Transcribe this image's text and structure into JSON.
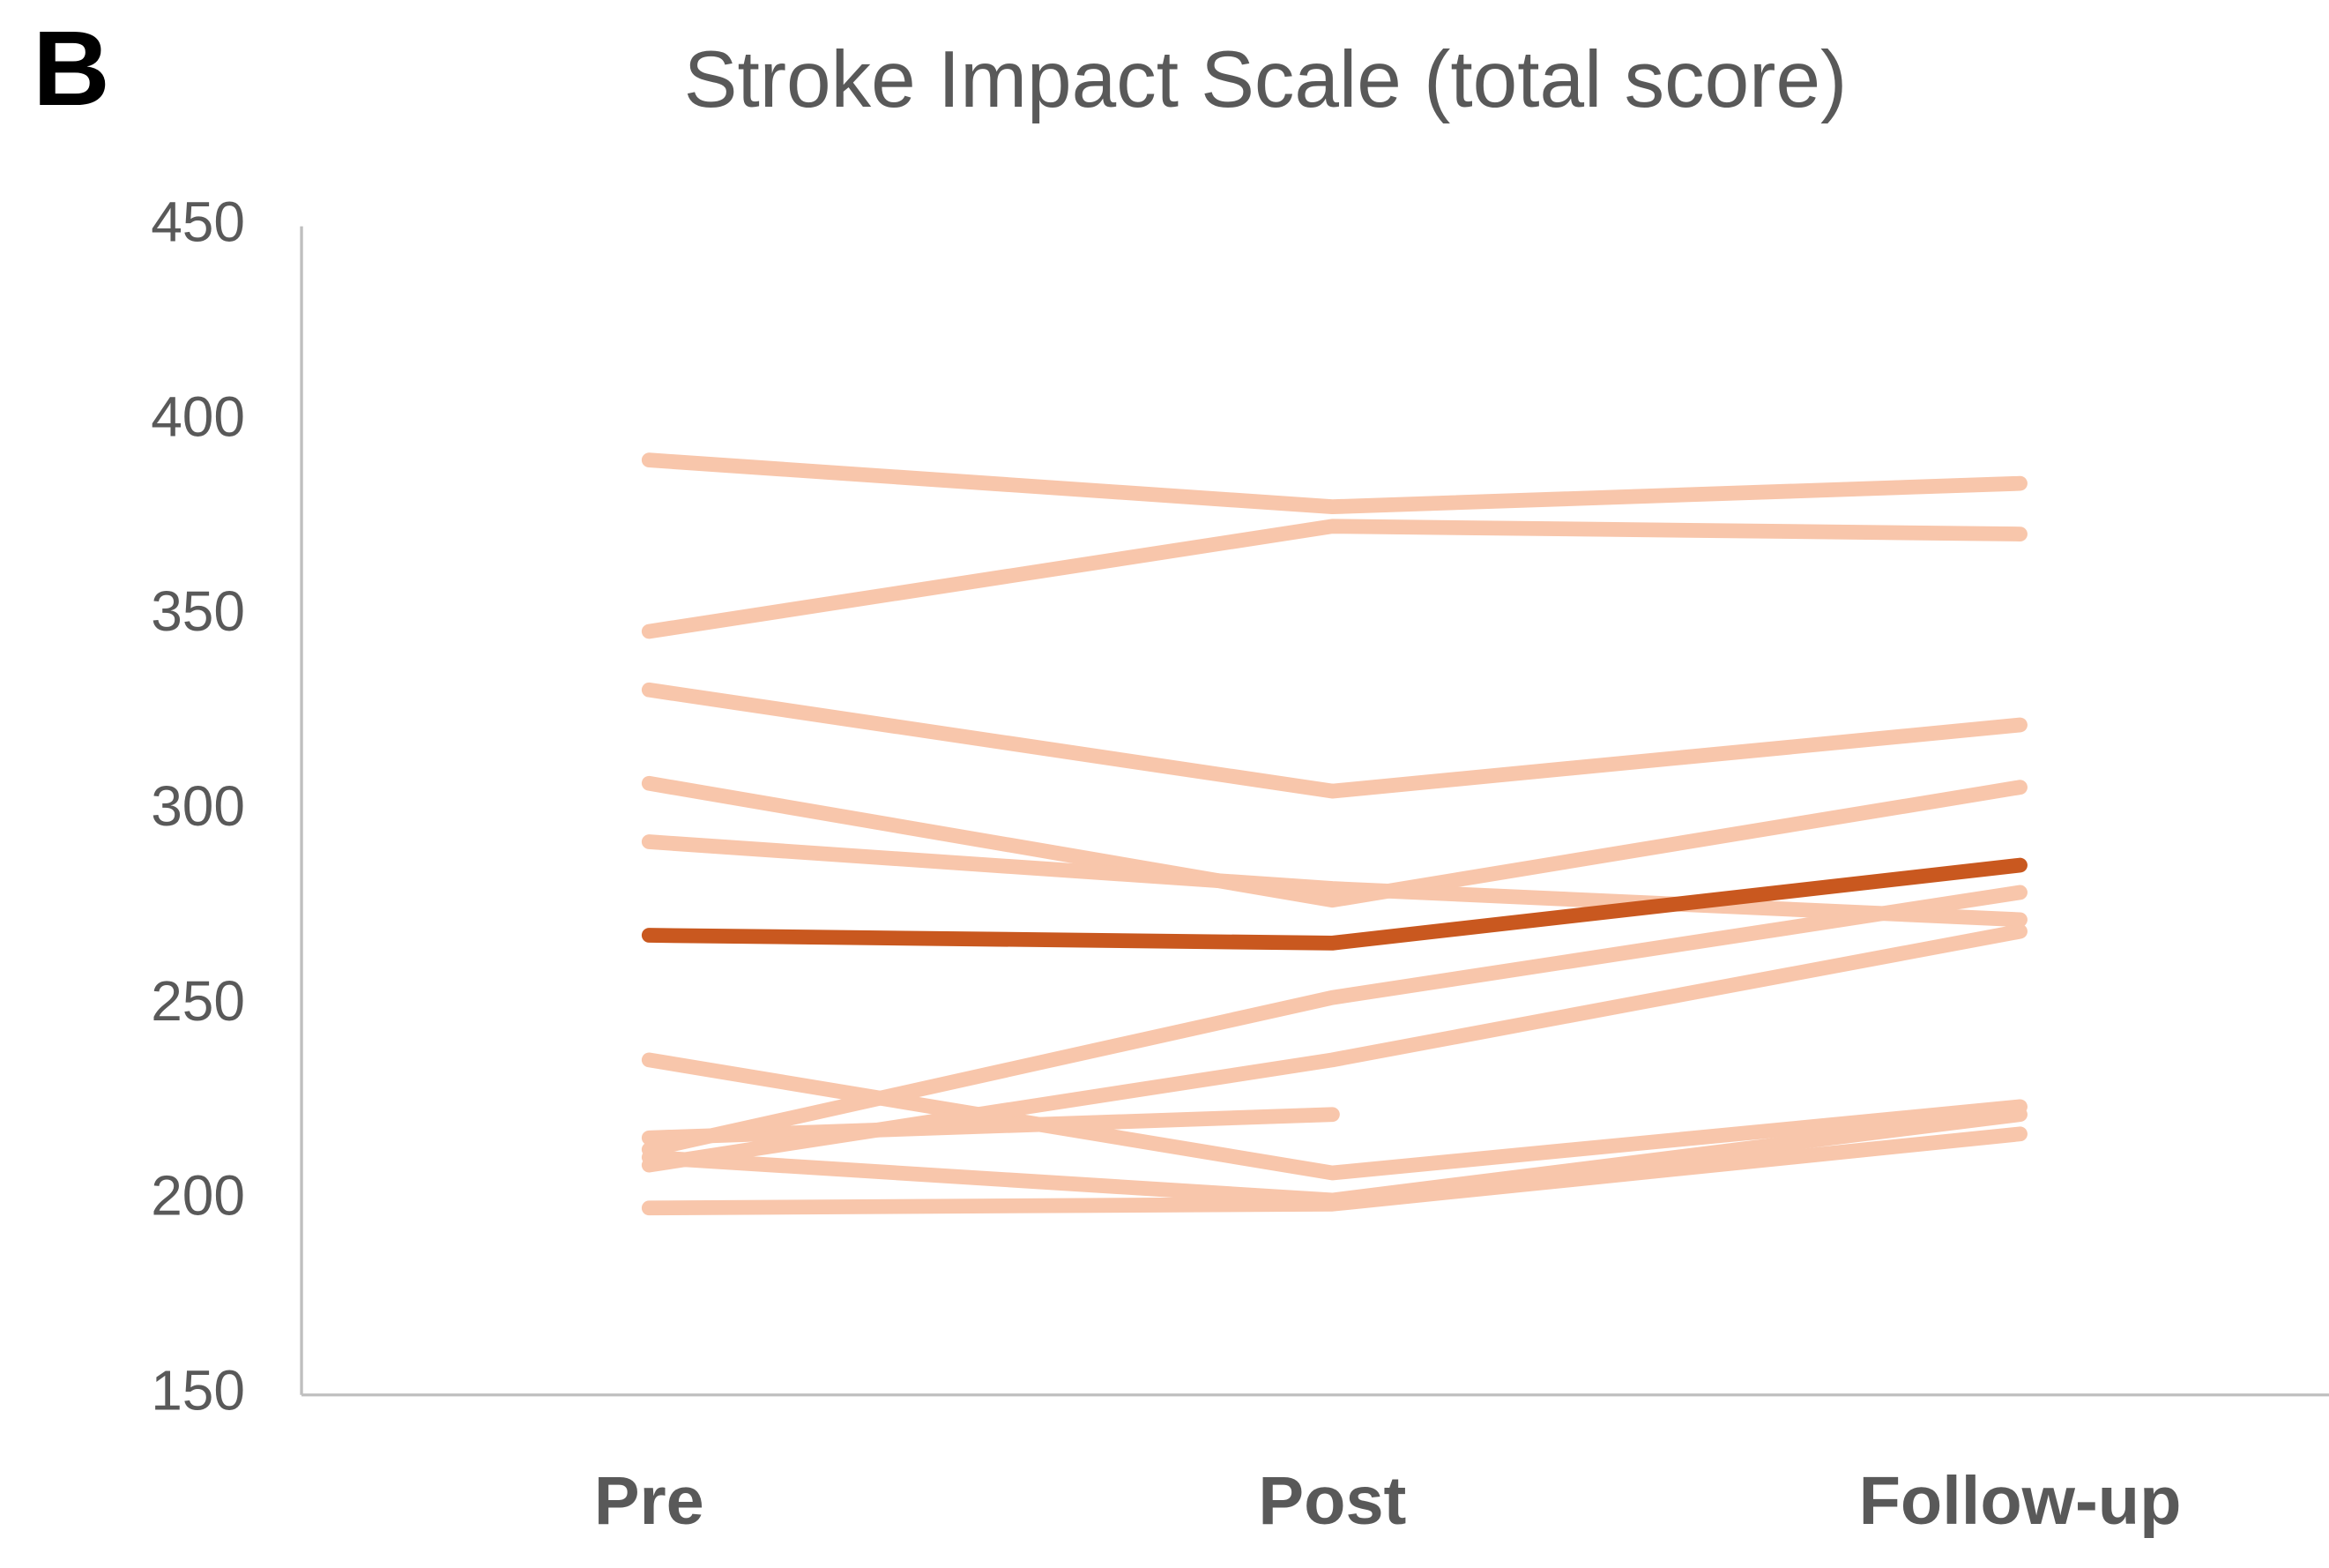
{
  "chart_data": {
    "type": "line",
    "panel_label": "B",
    "title": "Stroke Impact Scale (total score)",
    "categories": [
      "Pre",
      "Post",
      "Follow-up"
    ],
    "ylim": [
      150,
      450
    ],
    "yticks": [
      150,
      200,
      250,
      300,
      350,
      400,
      450
    ],
    "series": [
      {
        "color": "#f8c6ab",
        "values": [
          390,
          378,
          384
        ]
      },
      {
        "color": "#f8c6ab",
        "values": [
          346,
          373,
          371
        ]
      },
      {
        "color": "#f8c6ab",
        "values": [
          331,
          305,
          322
        ]
      },
      {
        "color": "#f8c6ab",
        "values": [
          307,
          277,
          306
        ]
      },
      {
        "color": "#f8c6ab",
        "values": [
          292,
          280,
          272
        ]
      },
      {
        "color": "#f8c6ab",
        "values": [
          236,
          207,
          224
        ]
      },
      {
        "color": "#f8c6ab",
        "values": [
          216,
          222,
          null
        ]
      },
      {
        "color": "#f8c6ab",
        "values": [
          213,
          252,
          279
        ]
      },
      {
        "color": "#f8c6ab",
        "values": [
          209,
          236,
          269
        ]
      },
      {
        "color": "#f8c6ab",
        "values": [
          211,
          200,
          222
        ]
      },
      {
        "color": "#f8c6ab",
        "values": [
          198,
          199,
          217
        ]
      },
      {
        "color": "#c9581f",
        "values": [
          268,
          266,
          286
        ]
      }
    ]
  }
}
